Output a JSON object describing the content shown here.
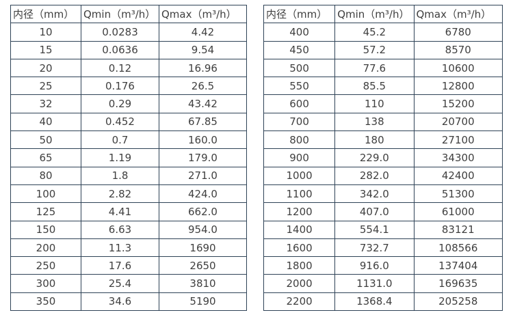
{
  "border_color": "#2e4256",
  "text_color": "#3f3f3f",
  "tables": [
    {
      "headers": [
        "内径（mm）",
        "Qmin（m³/h）",
        "Qmax（m³/h）"
      ],
      "rows": [
        [
          "10",
          "0.0283",
          "4.42"
        ],
        [
          "15",
          "0.0636",
          "9.54"
        ],
        [
          "20",
          "0.12",
          "16.96"
        ],
        [
          "25",
          "0.176",
          "26.5"
        ],
        [
          "32",
          "0.29",
          "43.42"
        ],
        [
          "40",
          "0.452",
          "67.85"
        ],
        [
          "50",
          "0.7",
          "160.0"
        ],
        [
          "65",
          "1.19",
          "179.0"
        ],
        [
          "80",
          "1.8",
          "271.0"
        ],
        [
          "100",
          "2.82",
          "424.0"
        ],
        [
          "125",
          "4.41",
          "662.0"
        ],
        [
          "150",
          "6.63",
          "954.0"
        ],
        [
          "200",
          "11.3",
          "1690"
        ],
        [
          "250",
          "17.6",
          "2650"
        ],
        [
          "300",
          "25.4",
          "3810"
        ],
        [
          "350",
          "34.6",
          "5190"
        ]
      ]
    },
    {
      "headers": [
        "内径（mm）",
        "Qmin（m³/h）",
        "Qmax（m³/h）"
      ],
      "rows": [
        [
          "400",
          "45.2",
          "6780"
        ],
        [
          "450",
          "57.2",
          "8570"
        ],
        [
          "500",
          "77.6",
          "10600"
        ],
        [
          "550",
          "85.5",
          "12800"
        ],
        [
          "600",
          "110",
          "15200"
        ],
        [
          "700",
          "138",
          "20700"
        ],
        [
          "800",
          "180",
          "27100"
        ],
        [
          "900",
          "229.0",
          "34300"
        ],
        [
          "1000",
          "282.0",
          "42400"
        ],
        [
          "1100",
          "342.0",
          "51300"
        ],
        [
          "1200",
          "407.0",
          "61000"
        ],
        [
          "1400",
          "554.1",
          "83121"
        ],
        [
          "1600",
          "732.7",
          "108566"
        ],
        [
          "1800",
          "916.0",
          "137404"
        ],
        [
          "2000",
          "1131.0",
          "169635"
        ],
        [
          "2200",
          "1368.4",
          "205258"
        ]
      ]
    }
  ]
}
